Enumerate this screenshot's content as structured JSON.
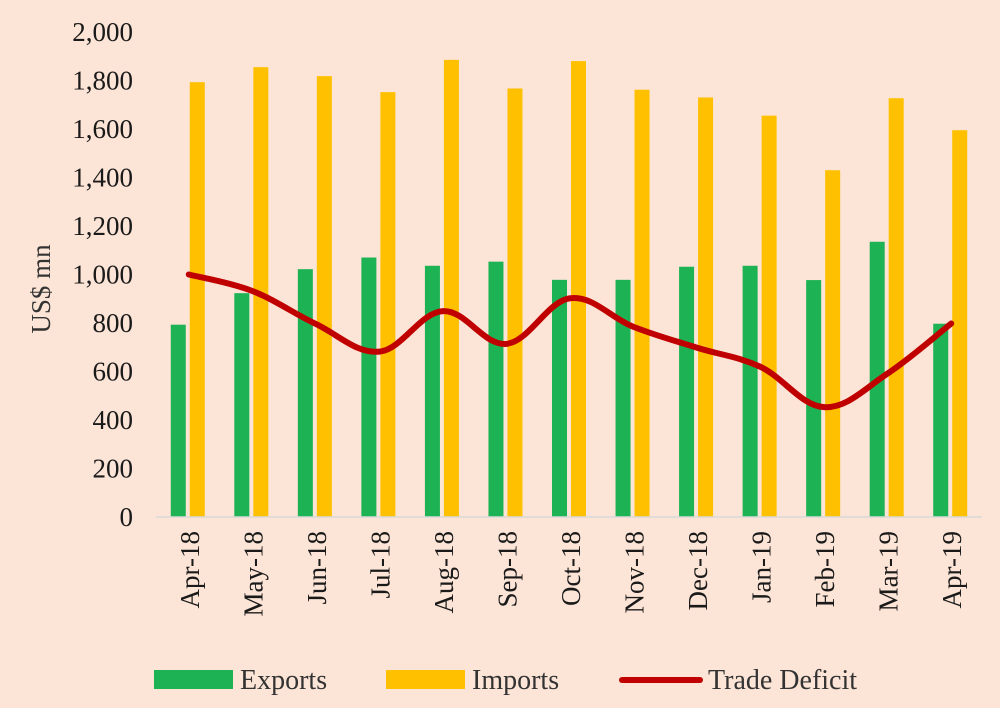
{
  "chart_data": {
    "type": "bar",
    "title": "",
    "xlabel": "",
    "ylabel": "US$ mn",
    "ylim": [
      0,
      2000
    ],
    "ytick_values": [
      0,
      200,
      400,
      600,
      800,
      1000,
      1200,
      1400,
      1600,
      1800,
      2000
    ],
    "ytick_labels": [
      "0",
      "200",
      "400",
      "600",
      "800",
      "1,000",
      "1,200",
      "1,400",
      "1,600",
      "1,800",
      "2,000"
    ],
    "categories": [
      "Apr-18",
      "May-18",
      "Jun-18",
      "Jul-18",
      "Aug-18",
      "Sep-18",
      "Oct-18",
      "Nov-18",
      "Dec-18",
      "Jan-19",
      "Feb-19",
      "Mar-19",
      "Apr-19"
    ],
    "series": [
      {
        "name": "Exports",
        "kind": "bar",
        "color": "#1DB254",
        "values": [
          793,
          923,
          1022,
          1070,
          1036,
          1053,
          978,
          978,
          1032,
          1036,
          977,
          1135,
          797
        ]
      },
      {
        "name": "Imports",
        "kind": "bar",
        "color": "#FFC000",
        "values": [
          1793,
          1855,
          1818,
          1752,
          1885,
          1767,
          1880,
          1762,
          1730,
          1655,
          1430,
          1727,
          1595
        ]
      },
      {
        "name": "Trade Deficit",
        "kind": "line",
        "color": "#C00000",
        "values": [
          1000,
          932,
          796,
          682,
          849,
          714,
          902,
          784,
          698,
          619,
          453,
          592,
          798
        ]
      }
    ],
    "grid": false,
    "legend": "bottom"
  }
}
